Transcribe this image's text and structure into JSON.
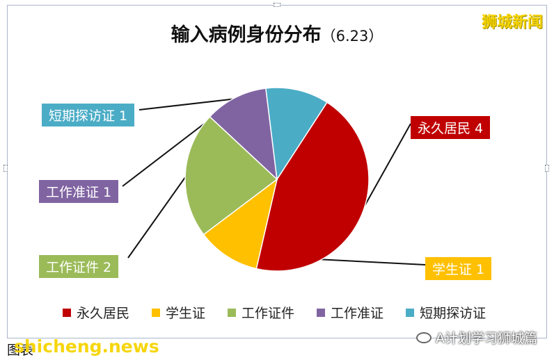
{
  "watermark_top": "狮城新闻",
  "footer": {
    "caption": "图表",
    "watermark": "shicheng.news",
    "wechat_text": "A计划学习狮城篇"
  },
  "chart_data": {
    "type": "pie",
    "title": "输入病例身份分布",
    "subtitle": "（6.23）",
    "categories": [
      "永久居民",
      "学生证",
      "工作证件",
      "工作准证",
      "短期探访证"
    ],
    "values": [
      4,
      1,
      2,
      1,
      1
    ],
    "colors": [
      "#c00000",
      "#ffc000",
      "#9bbb59",
      "#8064a2",
      "#4bacc6"
    ],
    "data_labels": [
      "永久居民 4",
      "学生证 1",
      "工作证件 2",
      "工作准证 1",
      "短期探访证 1"
    ],
    "legend": [
      "永久居民",
      "学生证",
      "工作证件",
      "工作准证",
      "短期探访证"
    ],
    "legend_position": "bottom"
  }
}
